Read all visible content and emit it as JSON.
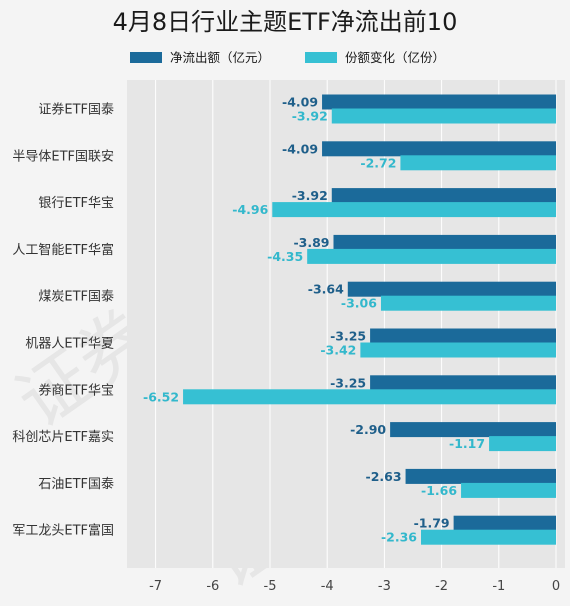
{
  "chart_data": {
    "type": "bar",
    "orientation": "horizontal",
    "title": "4月8日行业主题ETF净流出前10",
    "categories": [
      "证券ETF国泰",
      "半导体ETF国联安",
      "银行ETF华宝",
      "人工智能ETF华富",
      "煤炭ETF国泰",
      "机器人ETF华夏",
      "券商ETF华宝",
      "科创芯片ETF嘉实",
      "石油ETF国泰",
      "军工龙头ETF富国"
    ],
    "series": [
      {
        "name": "净流出额（亿元）",
        "color": "#1b6a9a",
        "values": [
          -4.09,
          -4.09,
          -3.92,
          -3.89,
          -3.64,
          -3.25,
          -3.25,
          -2.9,
          -2.63,
          -1.79
        ],
        "labels": [
          "-4.09",
          "-4.09",
          "-3.92",
          "-3.89",
          "-3.64",
          "-3.25",
          "-3.25",
          "-2.90",
          "-2.63",
          "-1.79"
        ]
      },
      {
        "name": "份额变化（亿份）",
        "color": "#36c0d3",
        "values": [
          -3.92,
          -2.72,
          -4.96,
          -4.35,
          -3.06,
          -3.42,
          -6.52,
          -1.17,
          -1.66,
          -2.36
        ],
        "labels": [
          "-3.92",
          "-2.72",
          "-4.96",
          "-4.35",
          "-3.06",
          "-3.42",
          "-6.52",
          "-1.17",
          "-1.66",
          "-2.36"
        ]
      }
    ],
    "xlim": [
      -7.5,
      0
    ],
    "xticks": [
      -7,
      -6,
      -5,
      -4,
      -3,
      -2,
      -1,
      0
    ],
    "xtick_labels": [
      "-7",
      "-6",
      "-5",
      "-4",
      "-3",
      "-2",
      "-1",
      "0"
    ],
    "grid": true,
    "legend_position": "top"
  }
}
